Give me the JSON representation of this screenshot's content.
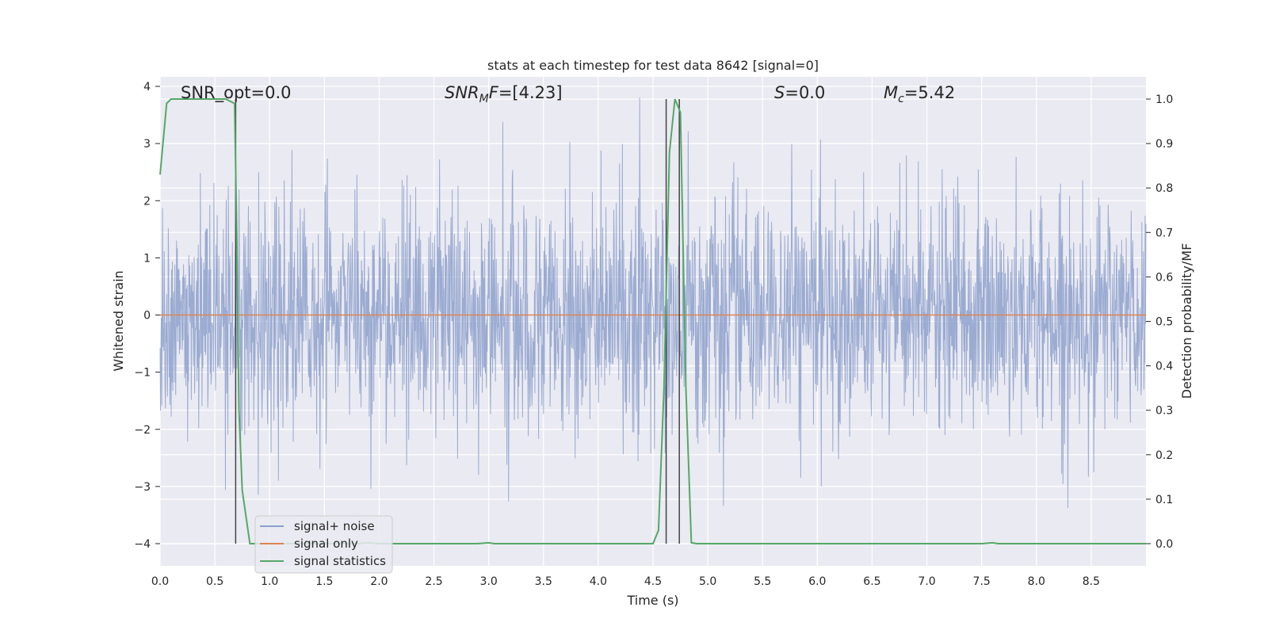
{
  "chart_data": {
    "type": "line",
    "title": "stats at each timestep for test data 8642 [signal=0]",
    "xlabel": "Time (s)",
    "ylabel": "Whitened strain",
    "ylabel_right": "Detection probability/MF",
    "xlim": [
      0.0,
      9.0
    ],
    "ylim": [
      -4.4,
      4.2
    ],
    "ylim_right": [
      -0.05,
      1.03
    ],
    "x_ticks": [
      "0.0",
      "0.5",
      "1.0",
      "1.5",
      "2.0",
      "2.5",
      "3.0",
      "3.5",
      "4.0",
      "4.5",
      "5.0",
      "5.5",
      "6.0",
      "6.5",
      "7.0",
      "7.5",
      "8.0",
      "8.5"
    ],
    "y_ticks": [
      "4",
      "3",
      "2",
      "1",
      "0",
      "−1",
      "−2",
      "−3",
      "−4"
    ],
    "y_right_ticks": [
      "1.0",
      "0.9",
      "0.8",
      "0.7",
      "0.6",
      "0.5",
      "0.4",
      "0.3",
      "0.2",
      "0.1",
      "0.0"
    ],
    "grid": true,
    "legend_position": "lower-left",
    "annotations": {
      "snr_opt": "SNR_opt=0.0",
      "snr_mf_main": "SNR",
      "snr_mf_sub": "M",
      "snr_mf_tail": "F",
      "snr_mf_value": "=[4.23]",
      "s_symbol": "S",
      "s_value": "=0.0",
      "mc_symbol": "M",
      "mc_sub": "c",
      "mc_value": "=5.42"
    },
    "vertical_markers_s": [
      0.69,
      4.62,
      4.74
    ],
    "series": [
      {
        "name": "signal+ noise",
        "color": "#8da0cb",
        "axis": "left",
        "description_only": false,
        "noise_std": 1.0,
        "envelope_values": [
          -2.2,
          2.2
        ]
      },
      {
        "name": "signal only",
        "color": "#dd8452",
        "axis": "left",
        "x": [
          0.0,
          9.0
        ],
        "y": [
          0.0,
          0.0
        ]
      },
      {
        "name": "signal statistics",
        "color": "#55a868",
        "axis": "right",
        "x": [
          0.0,
          0.06,
          0.1,
          0.15,
          0.6,
          0.68,
          0.7,
          0.72,
          0.75,
          0.82,
          1.8,
          1.9,
          2.0,
          2.9,
          3.0,
          3.05,
          4.5,
          4.55,
          4.6,
          4.65,
          4.7,
          4.75,
          4.8,
          4.85,
          4.9,
          7.5,
          7.6,
          7.65,
          9.0
        ],
        "y": [
          0.83,
          0.99,
          1.0,
          1.0,
          1.0,
          0.99,
          0.7,
          0.3,
          0.12,
          0.0,
          0.0,
          0.002,
          0.0,
          0.0,
          0.002,
          0.0,
          0.0,
          0.03,
          0.35,
          0.88,
          1.0,
          0.97,
          0.35,
          0.002,
          0.0,
          0.0,
          0.002,
          0.0,
          0.0
        ]
      }
    ]
  },
  "legend": {
    "item1": "signal+ noise",
    "item2": "signal only",
    "item3": "signal statistics"
  },
  "colors": {
    "background": "#eaeaf2",
    "grid": "#ffffff",
    "noise": "#8da0cb",
    "signal": "#dd8452",
    "stats": "#55a868",
    "marker": "#444444"
  }
}
